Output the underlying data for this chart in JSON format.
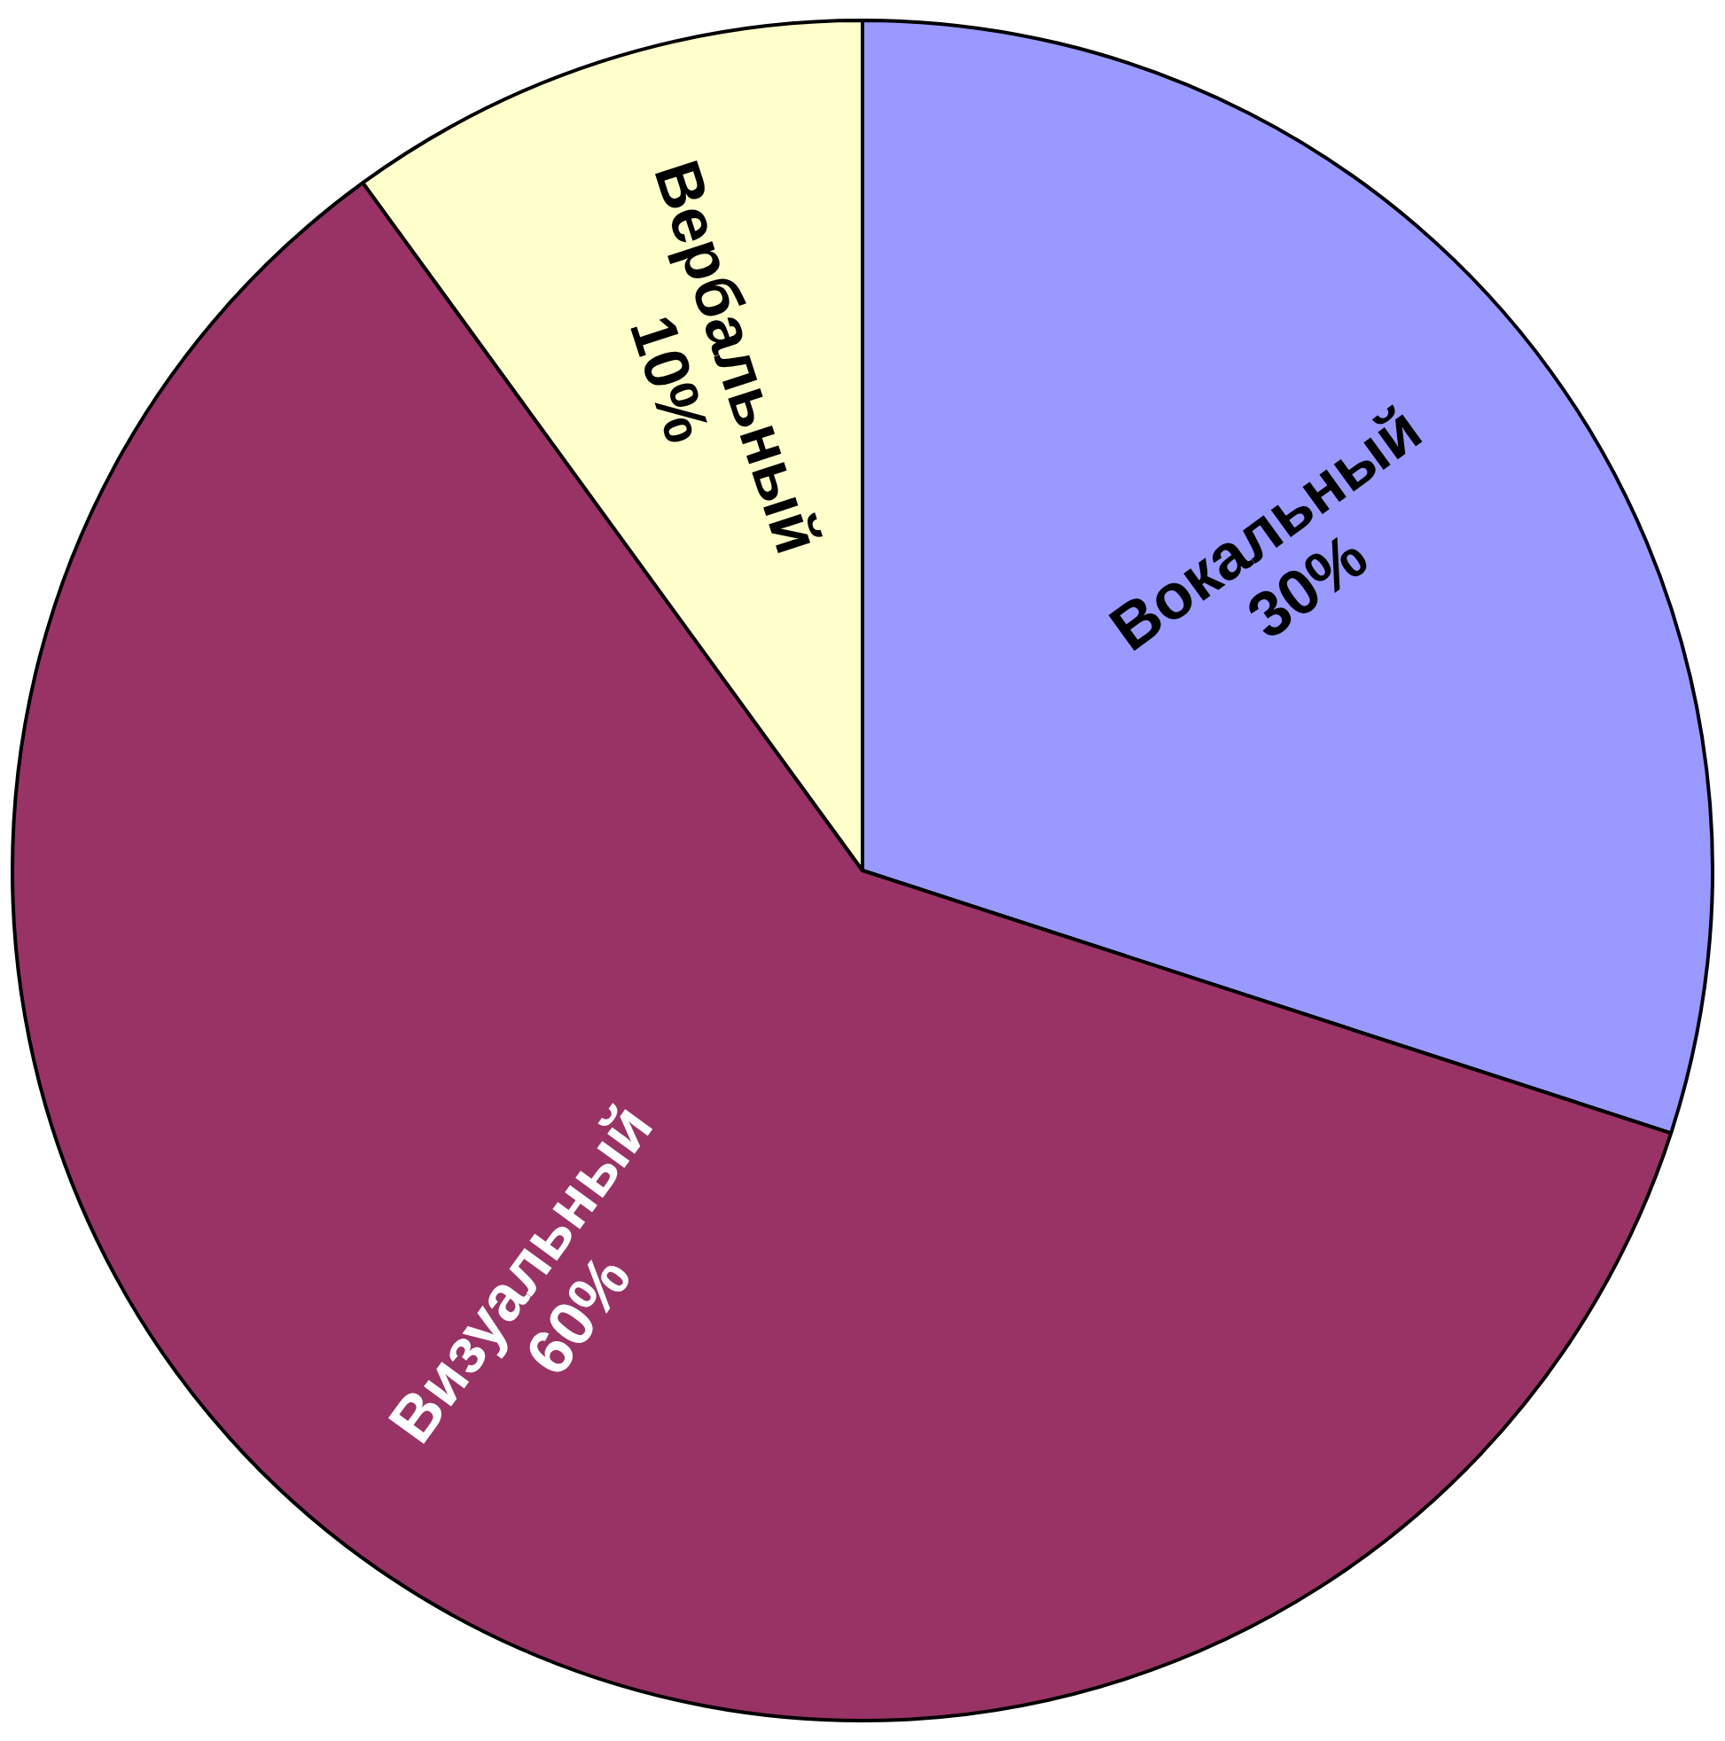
{
  "chart_data": {
    "type": "pie",
    "categories": [
      "Вокальный",
      "Визуальный",
      "Вербальный"
    ],
    "values": [
      30,
      60,
      10
    ],
    "value_labels": [
      "30%",
      "60%",
      "10%"
    ],
    "colors": [
      "#9999ff",
      "#993366",
      "#ffffcc"
    ],
    "legend": false
  }
}
